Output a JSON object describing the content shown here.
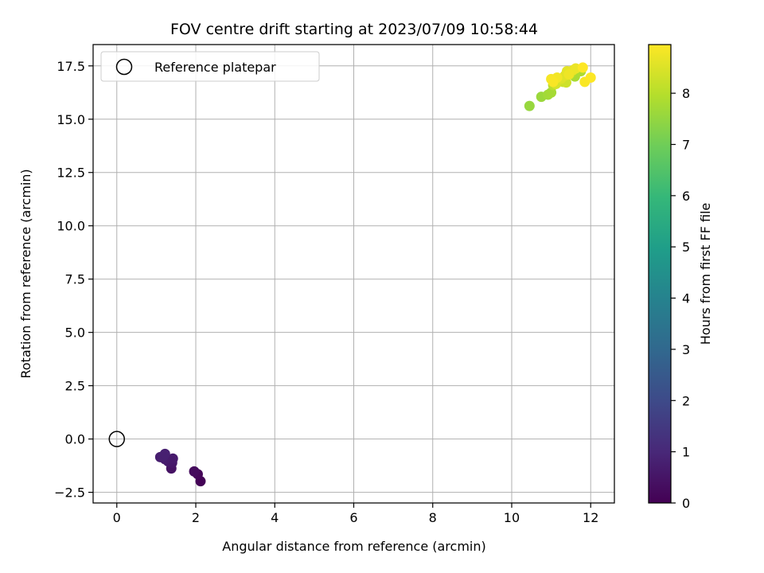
{
  "chart_data": {
    "type": "scatter",
    "title": "FOV centre drift starting at 2023/07/09 10:58:44",
    "xlabel": "Angular distance from reference (arcmin)",
    "ylabel": "Rotation from reference (arcmin)",
    "xlim": [
      -0.6,
      12.6
    ],
    "ylim": [
      -3.0,
      18.5
    ],
    "xticks": [
      0,
      2,
      4,
      6,
      8,
      10,
      12
    ],
    "xtick_labels": [
      "0",
      "2",
      "4",
      "6",
      "8",
      "10",
      "12"
    ],
    "yticks": [
      -2.5,
      0.0,
      2.5,
      5.0,
      7.5,
      10.0,
      12.5,
      15.0,
      17.5
    ],
    "ytick_labels": [
      "−2.5",
      "0.0",
      "2.5",
      "5.0",
      "7.5",
      "10.0",
      "12.5",
      "15.0",
      "17.5"
    ],
    "grid": true,
    "legend": {
      "position": "top-left",
      "entries": [
        {
          "label": "Reference platepar",
          "marker": "open-circle"
        }
      ]
    },
    "colorbar": {
      "label": "Hours from first FF file",
      "colormap": "viridis",
      "range": [
        0,
        8.95
      ],
      "ticks": [
        0,
        1,
        2,
        3,
        4,
        5,
        6,
        7,
        8
      ],
      "tick_labels": [
        "0",
        "1",
        "2",
        "3",
        "4",
        "5",
        "6",
        "7",
        "8"
      ]
    },
    "reference_point": {
      "x": 0,
      "y": 0
    },
    "points": [
      {
        "x": 2.12,
        "y": -1.98,
        "c": 0.05
      },
      {
        "x": 2.05,
        "y": -1.65,
        "c": 0.15
      },
      {
        "x": 1.96,
        "y": -1.52,
        "c": 0.25
      },
      {
        "x": 1.38,
        "y": -1.38,
        "c": 0.45
      },
      {
        "x": 1.4,
        "y": -1.12,
        "c": 0.55
      },
      {
        "x": 1.3,
        "y": -1.05,
        "c": 0.6
      },
      {
        "x": 1.42,
        "y": -0.92,
        "c": 0.65
      },
      {
        "x": 1.22,
        "y": -0.95,
        "c": 0.7
      },
      {
        "x": 1.1,
        "y": -0.85,
        "c": 0.75
      },
      {
        "x": 1.18,
        "y": -0.82,
        "c": 0.78
      },
      {
        "x": 1.22,
        "y": -0.7,
        "c": 0.8
      },
      {
        "x": 10.45,
        "y": 15.62,
        "c": 7.55
      },
      {
        "x": 10.75,
        "y": 16.05,
        "c": 7.6
      },
      {
        "x": 10.92,
        "y": 16.15,
        "c": 7.7
      },
      {
        "x": 11.0,
        "y": 16.25,
        "c": 7.75
      },
      {
        "x": 11.6,
        "y": 17.0,
        "c": 7.8
      },
      {
        "x": 11.75,
        "y": 17.25,
        "c": 7.85
      },
      {
        "x": 11.5,
        "y": 17.15,
        "c": 7.95
      },
      {
        "x": 11.05,
        "y": 16.6,
        "c": 8.05
      },
      {
        "x": 11.2,
        "y": 16.8,
        "c": 8.15
      },
      {
        "x": 11.3,
        "y": 16.75,
        "c": 8.25
      },
      {
        "x": 11.38,
        "y": 16.72,
        "c": 8.3
      },
      {
        "x": 11.12,
        "y": 16.65,
        "c": 8.4
      },
      {
        "x": 11.25,
        "y": 16.9,
        "c": 8.5
      },
      {
        "x": 11.35,
        "y": 17.05,
        "c": 8.55
      },
      {
        "x": 11.4,
        "y": 17.25,
        "c": 8.6
      },
      {
        "x": 11.55,
        "y": 17.3,
        "c": 8.65
      },
      {
        "x": 11.62,
        "y": 17.38,
        "c": 8.7
      },
      {
        "x": 11.45,
        "y": 17.1,
        "c": 8.75
      },
      {
        "x": 11.15,
        "y": 16.95,
        "c": 8.8
      },
      {
        "x": 11.0,
        "y": 16.88,
        "c": 8.85
      },
      {
        "x": 11.05,
        "y": 16.75,
        "c": 8.88
      },
      {
        "x": 11.85,
        "y": 16.75,
        "c": 8.9
      },
      {
        "x": 12.0,
        "y": 16.95,
        "c": 8.93
      },
      {
        "x": 11.8,
        "y": 17.42,
        "c": 8.95
      }
    ]
  }
}
